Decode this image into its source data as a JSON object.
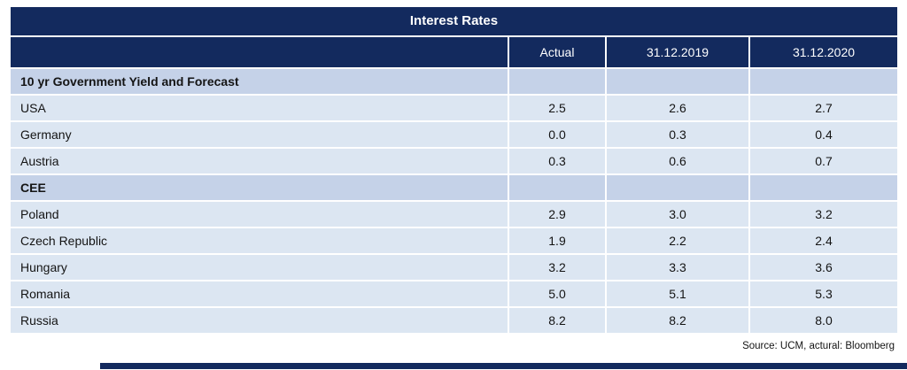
{
  "table": {
    "title": "Interest Rates",
    "columns": [
      "",
      "Actual",
      "31.12.2019",
      "31.12.2020"
    ],
    "rows": [
      {
        "type": "section",
        "label": "10 yr Government Yield and Forecast",
        "values": [
          "",
          "",
          ""
        ]
      },
      {
        "type": "data",
        "label": "USA",
        "values": [
          "2.5",
          "2.6",
          "2.7"
        ]
      },
      {
        "type": "data",
        "label": "Germany",
        "values": [
          "0.0",
          "0.3",
          "0.4"
        ]
      },
      {
        "type": "data",
        "label": "Austria",
        "values": [
          "0.3",
          "0.6",
          "0.7"
        ]
      },
      {
        "type": "section",
        "label": "CEE",
        "values": [
          "",
          "",
          ""
        ]
      },
      {
        "type": "data",
        "label": "Poland",
        "values": [
          "2.9",
          "3.0",
          "3.2"
        ]
      },
      {
        "type": "data",
        "label": "Czech Republic",
        "values": [
          "1.9",
          "2.2",
          "2.4"
        ]
      },
      {
        "type": "data",
        "label": "Hungary",
        "values": [
          "3.2",
          "3.3",
          "3.6"
        ]
      },
      {
        "type": "data",
        "label": "Romania",
        "values": [
          "5.0",
          "5.1",
          "5.3"
        ]
      },
      {
        "type": "data",
        "label": "Russia",
        "values": [
          "8.2",
          "8.2",
          "8.0"
        ]
      }
    ],
    "source": "Source: UCM, actural: Bloomberg"
  },
  "colors": {
    "header_navy": "#132a5e",
    "section_row_bg": "#c5d2e8",
    "data_row_bg": "#dce6f2",
    "separator": "#ffffff",
    "text": "#141414",
    "header_text": "#ffffff"
  },
  "chart_data": {
    "type": "table",
    "title": "Interest Rates",
    "columns": [
      "",
      "Actual",
      "31.12.2019",
      "31.12.2020"
    ],
    "sections": [
      {
        "header": "10 yr Government Yield and Forecast",
        "rows": [
          [
            "USA",
            2.5,
            2.6,
            2.7
          ],
          [
            "Germany",
            0.0,
            0.3,
            0.4
          ],
          [
            "Austria",
            0.3,
            0.6,
            0.7
          ]
        ]
      },
      {
        "header": "CEE",
        "rows": [
          [
            "Poland",
            2.9,
            3.0,
            3.2
          ],
          [
            "Czech Republic",
            1.9,
            2.2,
            2.4
          ],
          [
            "Hungary",
            3.2,
            3.3,
            3.6
          ],
          [
            "Romania",
            5.0,
            5.1,
            5.3
          ],
          [
            "Russia",
            8.2,
            8.2,
            8.0
          ]
        ]
      }
    ],
    "source": "Source: UCM, actural: Bloomberg"
  }
}
